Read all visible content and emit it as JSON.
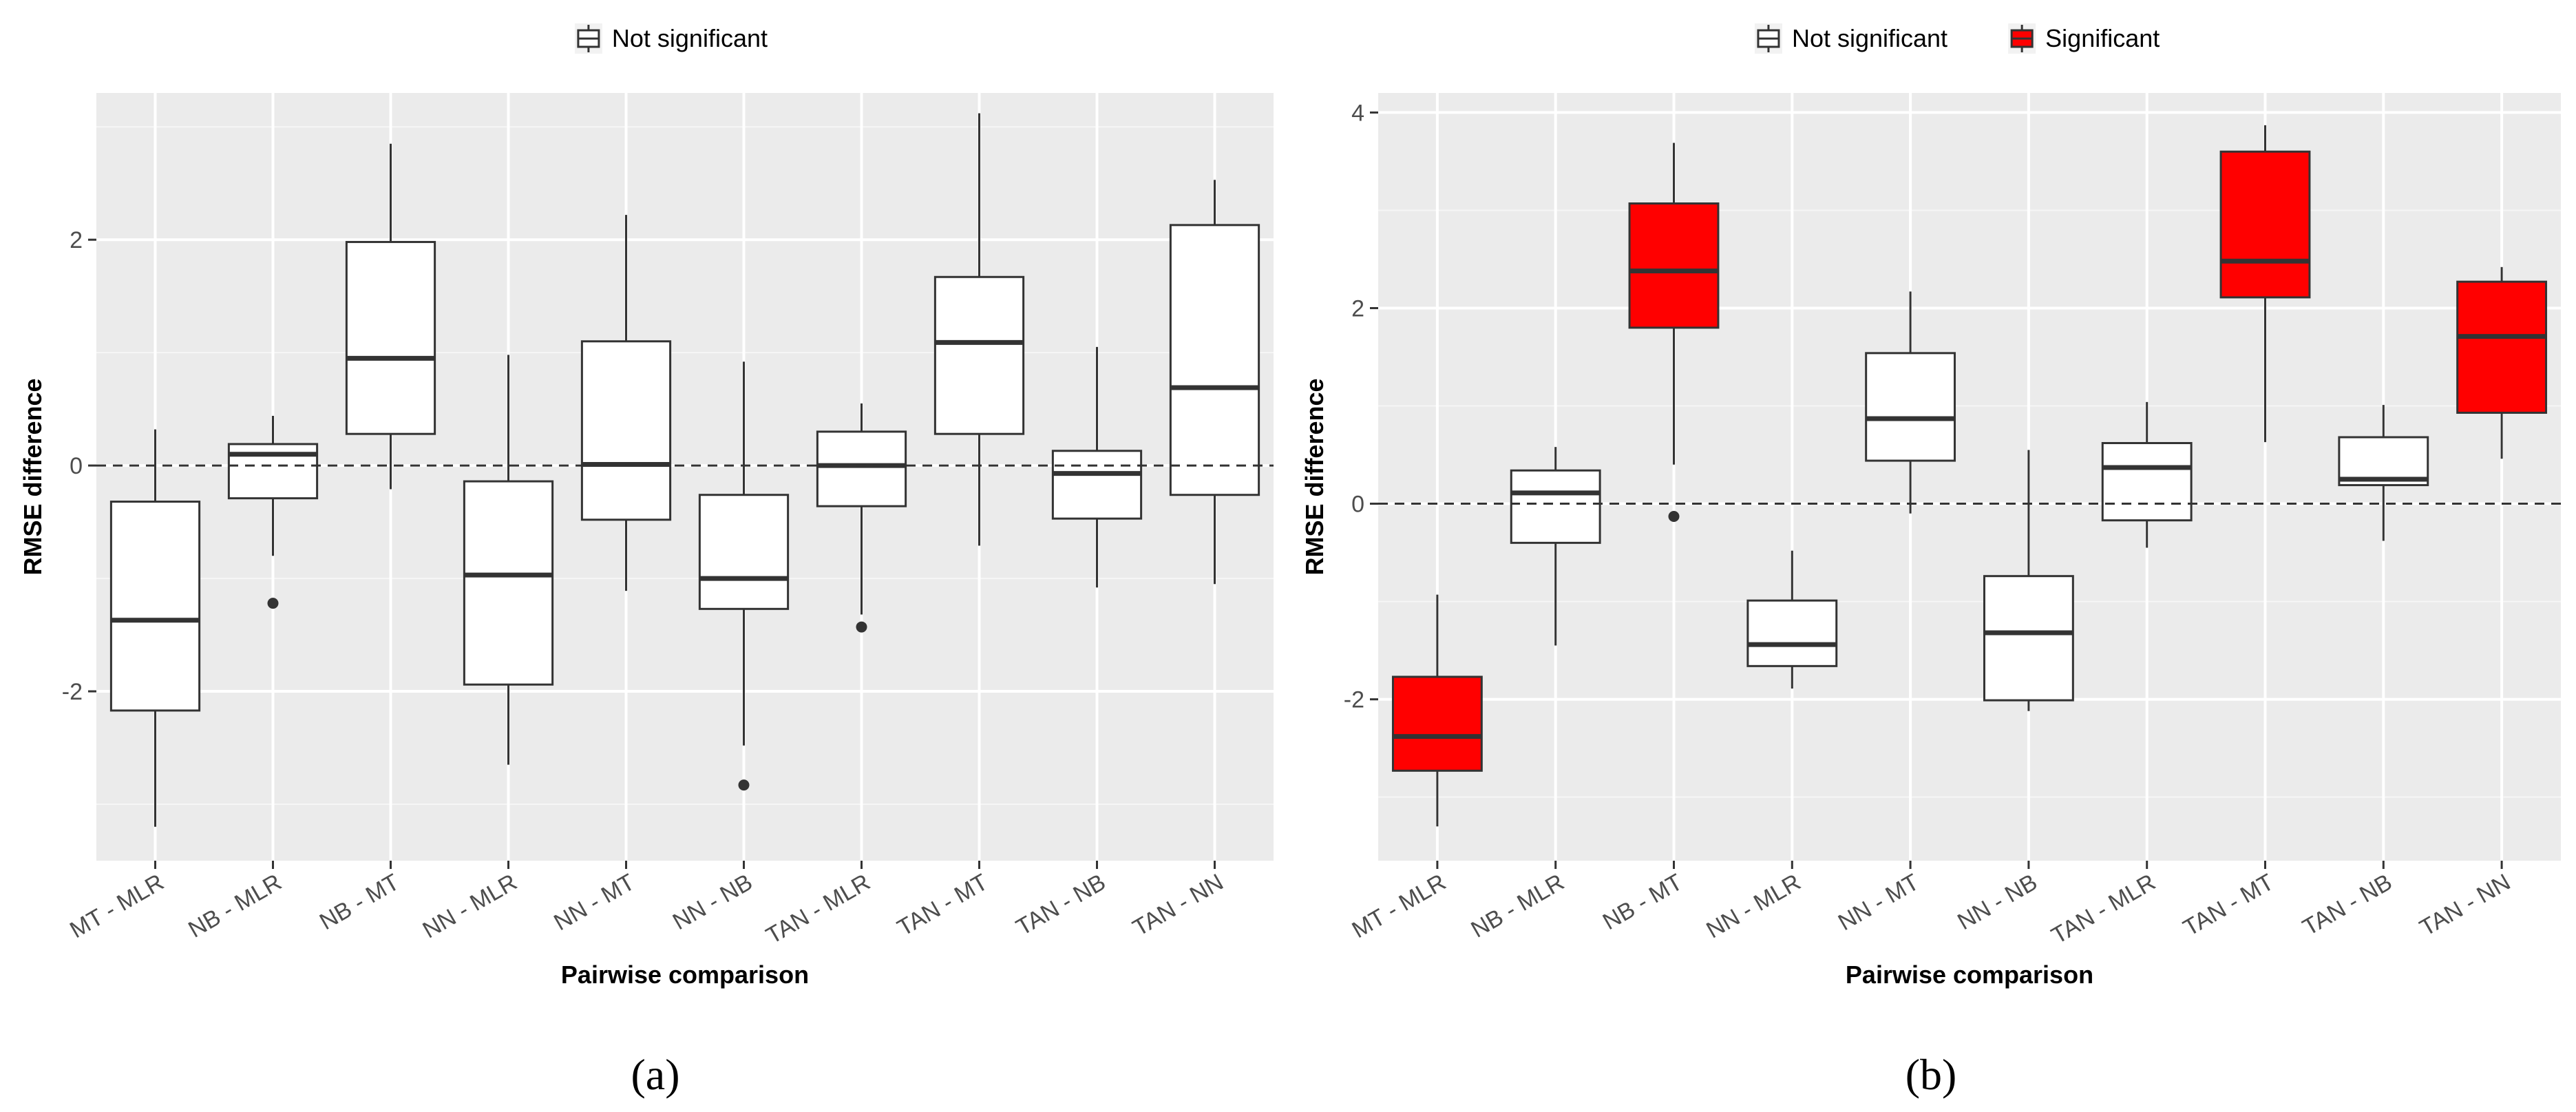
{
  "chart_data": [
    {
      "type": "box",
      "panel_label": "(a)",
      "xlabel": "Pairwise comparison",
      "ylabel": "RMSE difference",
      "ylim": [
        -3.5,
        3.3
      ],
      "yticks": [
        -2,
        0,
        2
      ],
      "ytick_labels": [
        "-2",
        "0",
        "2"
      ],
      "reference_line": 0,
      "legend": {
        "position": "top",
        "entries": [
          {
            "label": "Not significant",
            "fill": "#ffffff"
          }
        ]
      },
      "categories": [
        "MT - MLR",
        "NB - MLR",
        "NB - MT",
        "NN - MLR",
        "NN - MT",
        "NN - NB",
        "TAN - MLR",
        "TAN - MT",
        "TAN - NB",
        "TAN - NN"
      ],
      "boxes": [
        {
          "category": "MT - MLR",
          "min": -3.2,
          "q1": -2.17,
          "median": -1.37,
          "q3": -0.32,
          "max": 0.32,
          "outliers": [],
          "significant": false
        },
        {
          "category": "NB - MLR",
          "min": -0.8,
          "q1": -0.29,
          "median": 0.1,
          "q3": 0.19,
          "max": 0.44,
          "outliers": [
            -1.22
          ],
          "significant": false
        },
        {
          "category": "NB - MT",
          "min": -0.21,
          "q1": 0.28,
          "median": 0.95,
          "q3": 1.98,
          "max": 2.85,
          "outliers": [],
          "significant": false
        },
        {
          "category": "NN - MLR",
          "min": -2.65,
          "q1": -1.94,
          "median": -0.97,
          "q3": -0.14,
          "max": 0.98,
          "outliers": [],
          "significant": false
        },
        {
          "category": "NN - MT",
          "min": -1.11,
          "q1": -0.48,
          "median": 0.01,
          "q3": 1.1,
          "max": 2.22,
          "outliers": [],
          "significant": false
        },
        {
          "category": "NN - NB",
          "min": -2.48,
          "q1": -1.27,
          "median": -1.0,
          "q3": -0.26,
          "max": 0.92,
          "outliers": [
            -2.83
          ],
          "significant": false
        },
        {
          "category": "TAN - MLR",
          "min": -1.32,
          "q1": -0.36,
          "median": 0.0,
          "q3": 0.3,
          "max": 0.55,
          "outliers": [
            -1.43
          ],
          "significant": false
        },
        {
          "category": "TAN - MT",
          "min": -0.71,
          "q1": 0.28,
          "median": 1.09,
          "q3": 1.67,
          "max": 3.12,
          "outliers": [],
          "significant": false
        },
        {
          "category": "TAN - NB",
          "min": -1.08,
          "q1": -0.47,
          "median": -0.07,
          "q3": 0.13,
          "max": 1.05,
          "outliers": [],
          "significant": false
        },
        {
          "category": "TAN - NN",
          "min": -1.05,
          "q1": -0.26,
          "median": 0.69,
          "q3": 2.13,
          "max": 2.53,
          "outliers": [],
          "significant": false
        }
      ]
    },
    {
      "type": "box",
      "panel_label": "(b)",
      "xlabel": "Pairwise comparison",
      "ylabel": "RMSE difference",
      "ylim": [
        -3.65,
        4.2
      ],
      "yticks": [
        -2,
        0,
        2,
        4
      ],
      "ytick_labels": [
        "-2",
        "0",
        "2",
        "4"
      ],
      "reference_line": 0,
      "legend": {
        "position": "top",
        "entries": [
          {
            "label": "Not significant",
            "fill": "#ffffff"
          },
          {
            "label": "Significant",
            "fill": "#ff0000"
          }
        ]
      },
      "categories": [
        "MT - MLR",
        "NB - MLR",
        "NB - MT",
        "NN - MLR",
        "NN - MT",
        "NN - NB",
        "TAN - MLR",
        "TAN - MT",
        "TAN - NB",
        "TAN - NN"
      ],
      "boxes": [
        {
          "category": "MT - MLR",
          "min": -3.3,
          "q1": -2.73,
          "median": -2.38,
          "q3": -1.77,
          "max": -0.93,
          "outliers": [],
          "significant": true
        },
        {
          "category": "NB - MLR",
          "min": -1.45,
          "q1": -0.4,
          "median": 0.11,
          "q3": 0.34,
          "max": 0.58,
          "outliers": [],
          "significant": false
        },
        {
          "category": "NB - MT",
          "min": 0.4,
          "q1": 1.8,
          "median": 2.38,
          "q3": 3.07,
          "max": 3.69,
          "outliers": [
            -0.13
          ],
          "significant": true
        },
        {
          "category": "NN - MLR",
          "min": -1.89,
          "q1": -1.66,
          "median": -1.44,
          "q3": -0.99,
          "max": -0.48,
          "outliers": [],
          "significant": false
        },
        {
          "category": "NN - MT",
          "min": -0.1,
          "q1": 0.44,
          "median": 0.87,
          "q3": 1.54,
          "max": 2.17,
          "outliers": [],
          "significant": false
        },
        {
          "category": "NN - NB",
          "min": -2.12,
          "q1": -2.01,
          "median": -1.32,
          "q3": -0.74,
          "max": 0.55,
          "outliers": [],
          "significant": false
        },
        {
          "category": "TAN - MLR",
          "min": -0.45,
          "q1": -0.17,
          "median": 0.37,
          "q3": 0.62,
          "max": 1.04,
          "outliers": [],
          "significant": false
        },
        {
          "category": "TAN - MT",
          "min": 0.63,
          "q1": 2.11,
          "median": 2.48,
          "q3": 3.6,
          "max": 3.87,
          "outliers": [],
          "significant": true
        },
        {
          "category": "TAN - NB",
          "min": -0.38,
          "q1": 0.19,
          "median": 0.25,
          "q3": 0.68,
          "max": 1.01,
          "outliers": [],
          "significant": false
        },
        {
          "category": "TAN - NN",
          "min": 0.46,
          "q1": 0.93,
          "median": 1.71,
          "q3": 2.27,
          "max": 2.42,
          "outliers": [],
          "significant": true
        }
      ]
    }
  ]
}
